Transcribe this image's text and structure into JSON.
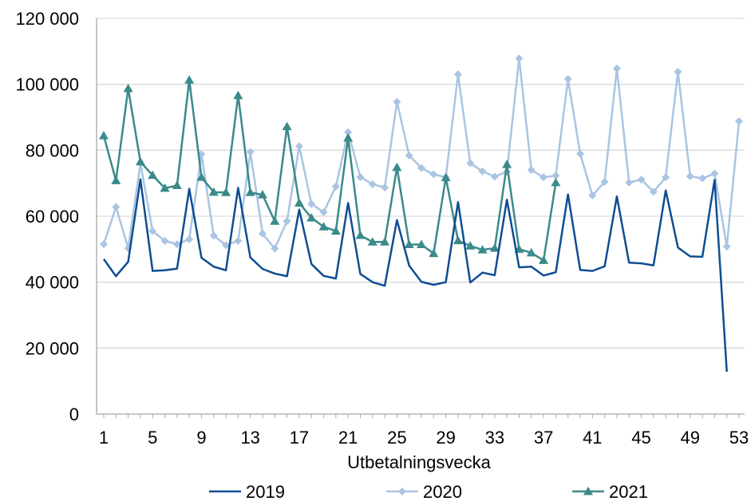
{
  "chart_data": {
    "type": "line",
    "xlabel": "Utbetalningsvecka",
    "ylabel": "",
    "ylim": [
      0,
      120000
    ],
    "xlim": [
      1,
      53
    ],
    "grid": "horizontal",
    "legend_placement": "bottom",
    "y_ticks": [
      0,
      20000,
      40000,
      60000,
      80000,
      100000,
      120000
    ],
    "y_tick_labels": [
      "0",
      "20 000",
      "40 000",
      "60 000",
      "80 000",
      "100 000",
      "120 000"
    ],
    "x_ticks": [
      1,
      5,
      9,
      13,
      17,
      21,
      25,
      29,
      33,
      37,
      41,
      45,
      49,
      53
    ],
    "x_tick_labels": [
      "1",
      "5",
      "9",
      "13",
      "17",
      "21",
      "25",
      "29",
      "33",
      "37",
      "41",
      "45",
      "49",
      "53"
    ],
    "series": [
      {
        "name": "2019",
        "color": "#0f4d92",
        "marker": "none",
        "values": [
          47000,
          41800,
          46200,
          71200,
          43400,
          43600,
          44100,
          68300,
          47400,
          44700,
          43600,
          68600,
          47500,
          44000,
          42600,
          41800,
          62000,
          45500,
          41900,
          41100,
          64000,
          42500,
          40000,
          38900,
          58800,
          45000,
          40100,
          39200,
          40000,
          64300,
          39900,
          42900,
          42100,
          65000,
          44500,
          44700,
          42000,
          43000,
          66600,
          43700,
          43400,
          44800,
          66000,
          45900,
          45700,
          45100,
          67800,
          50500,
          47800,
          47700,
          71000,
          12800
        ]
      },
      {
        "name": "2020",
        "color": "#aac4e2",
        "marker": "diamond",
        "values": [
          51500,
          62800,
          50300,
          76000,
          55500,
          52500,
          51500,
          53000,
          78800,
          54100,
          51200,
          52500,
          79500,
          54700,
          50200,
          58500,
          81200,
          63700,
          61200,
          69000,
          85500,
          71900,
          69700,
          68700,
          94700,
          78400,
          74600,
          72700,
          71800,
          103000,
          76100,
          73600,
          72000,
          73500,
          107800,
          74000,
          71800,
          72300,
          101600,
          78900,
          66300,
          70400,
          104800,
          70200,
          71100,
          67400,
          71800,
          103800,
          72100,
          71500,
          72900,
          50800,
          88800
        ]
      },
      {
        "name": "2021",
        "color": "#3a8a8a",
        "marker": "triangle",
        "values": [
          84400,
          70800,
          98700,
          76500,
          72400,
          68500,
          69300,
          101300,
          71800,
          67300,
          67200,
          96600,
          67200,
          66500,
          58500,
          87200,
          64000,
          59500,
          56800,
          55500,
          83700,
          54200,
          52200,
          52200,
          74800,
          51400,
          51400,
          48700,
          71700,
          52600,
          51000,
          49800,
          50300,
          75700,
          50000,
          48900,
          46600,
          70200
        ]
      }
    ]
  }
}
